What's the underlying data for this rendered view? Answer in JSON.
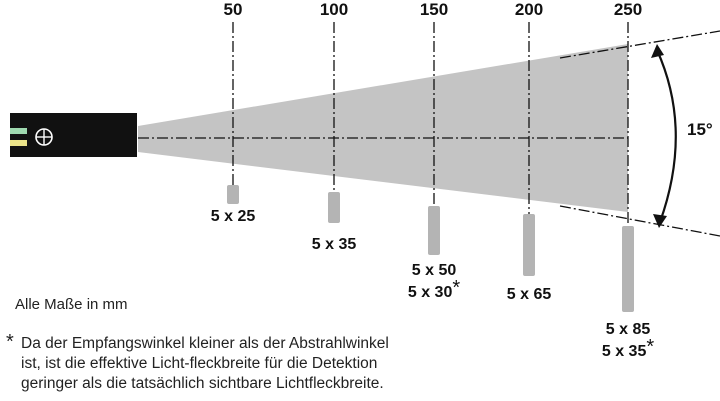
{
  "distances": [
    "50",
    "100",
    "150",
    "200",
    "250"
  ],
  "spots": [
    {
      "lines": [
        "5 x 25"
      ],
      "asterisk": [
        false
      ]
    },
    {
      "lines": [
        "5 x 35"
      ],
      "asterisk": [
        false
      ]
    },
    {
      "lines": [
        "5 x 50",
        "5 x 30"
      ],
      "asterisk": [
        false,
        true
      ]
    },
    {
      "lines": [
        "5 x 65"
      ],
      "asterisk": [
        false
      ]
    },
    {
      "lines": [
        "5 x 85",
        "5 x 35"
      ],
      "asterisk": [
        false,
        true
      ]
    }
  ],
  "angle": "15°",
  "units_note": "Alle Maße in mm",
  "footnote": {
    "marker": "*",
    "lines": [
      "Da der Empfangswinkel kleiner als der Abstrahlwinkel",
      "ist, ist die effektive Licht-fleckbreite für die Detektion",
      "geringer als die tatsächlich sichtbare Lichtfleckbreite."
    ]
  },
  "colors": {
    "beam": "#c4c4c4",
    "spot": "#b4b4b4",
    "sensor_body": "#111111",
    "led_green": "#9fd9b0",
    "led_yellow": "#ece48a",
    "lines": "#111111"
  }
}
